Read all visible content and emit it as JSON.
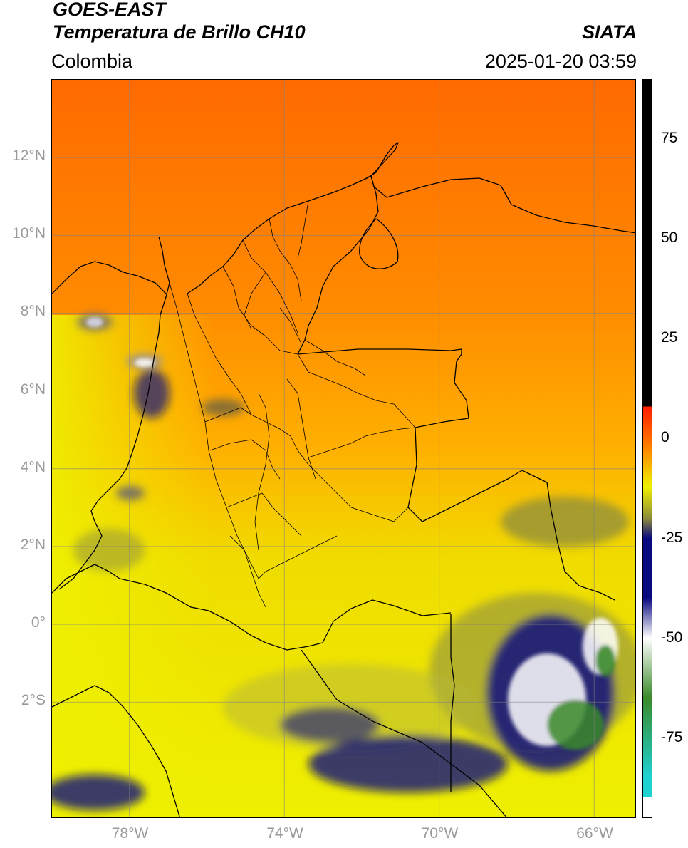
{
  "header": {
    "satellite": "GOES-EAST",
    "product": "Temperatura de Brillo CH10",
    "region": "Colombia",
    "agency": "SIATA",
    "datetime": "2025-01-20 03:59"
  },
  "map": {
    "lon_range": [
      -80.0,
      -64.9
    ],
    "lat_range": [
      -5.0,
      14.0
    ],
    "lat_ticks": [
      {
        "value": 12,
        "label": "12°N"
      },
      {
        "value": 10,
        "label": "10°N"
      },
      {
        "value": 8,
        "label": "8°N"
      },
      {
        "value": 6,
        "label": "6°N"
      },
      {
        "value": 4,
        "label": "4°N"
      },
      {
        "value": 2,
        "label": "2°N"
      },
      {
        "value": 0,
        "label": "0°"
      },
      {
        "value": -2,
        "label": "2°S"
      }
    ],
    "lon_ticks": [
      {
        "value": -78,
        "label": "78°W"
      },
      {
        "value": -74,
        "label": "74°W"
      },
      {
        "value": -70,
        "label": "70°W"
      },
      {
        "value": -66,
        "label": "66°W"
      }
    ],
    "grid": true
  },
  "colorbar": {
    "range": [
      -95,
      90
    ],
    "ticks": [
      {
        "value": 75,
        "label": "75"
      },
      {
        "value": 50,
        "label": "50"
      },
      {
        "value": 25,
        "label": "25"
      },
      {
        "value": 0,
        "label": "0"
      },
      {
        "value": -25,
        "label": "-25"
      },
      {
        "value": -50,
        "label": "-50"
      },
      {
        "value": -75,
        "label": "-75"
      }
    ],
    "colors": {
      "black": "#000000",
      "red": "#ff1e00",
      "orange": "#ff6a00",
      "yellow": "#f0f000",
      "olive": "#8c8c3c",
      "navy": "#0a0a80",
      "white": "#ffffff",
      "green": "#3a8a2a",
      "cyan": "#1ed2d2"
    }
  }
}
